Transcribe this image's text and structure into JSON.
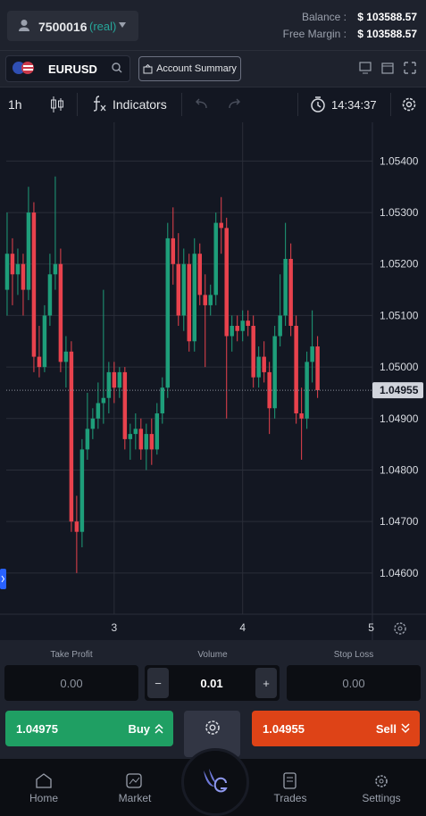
{
  "account": {
    "number": "7500016",
    "mode": "(real)",
    "balance_label": "Balance :",
    "balance": "$ 103588.57",
    "free_margin_label": "Free Margin :",
    "free_margin": "$ 103588.57"
  },
  "toolbar": {
    "symbol": "EURUSD",
    "account_summary": "Account Summary",
    "timeframe": "1h",
    "indicators": "Indicators",
    "time": "14:34:37"
  },
  "chart_data": {
    "type": "candlestick",
    "up_color": "#1e9e7a",
    "down_color": "#e8424d",
    "grid": true,
    "xlim": [
      2.16,
      5.01
    ],
    "xticks": [
      3,
      4,
      5
    ],
    "ylim": [
      1.0452,
      1.0547
    ],
    "yticks": [
      {
        "value": 1.046,
        "label": "1.04600"
      },
      {
        "value": 1.047,
        "label": "1.04700"
      },
      {
        "value": 1.048,
        "label": "1.04800"
      },
      {
        "value": 1.049,
        "label": "1.04900"
      },
      {
        "value": 1.05,
        "label": "1.05000"
      },
      {
        "value": 1.051,
        "label": "1.05100"
      },
      {
        "value": 1.052,
        "label": "1.05200"
      },
      {
        "value": 1.053,
        "label": "1.05300"
      },
      {
        "value": 1.054,
        "label": "1.05400"
      }
    ],
    "last_price": 1.04955,
    "x": [
      2.1667,
      2.2083,
      2.25,
      2.2917,
      2.3333,
      2.375,
      2.4167,
      2.4583,
      2.5,
      2.5417,
      2.5833,
      2.625,
      2.6667,
      2.7083,
      2.75,
      2.7917,
      2.8333,
      2.875,
      2.9167,
      2.9583,
      3,
      3.0417,
      3.0833,
      3.125,
      3.1667,
      3.2083,
      3.25,
      3.2917,
      3.3333,
      3.375,
      3.4167,
      3.4583,
      3.5,
      3.5417,
      3.5833,
      3.625,
      3.6667,
      3.7083,
      3.75,
      3.7917,
      3.8333,
      3.875,
      3.9167,
      3.9583,
      4,
      4.0417,
      4.0833,
      4.125,
      4.1667,
      4.2083,
      4.25,
      4.2917,
      4.3333,
      4.375,
      4.4167,
      4.4583,
      4.5,
      4.5417,
      4.5833
    ],
    "open": [
      1.0515,
      1.0522,
      1.0518,
      1.052,
      1.0515,
      1.053,
      1.0502,
      1.05,
      1.051,
      1.0518,
      1.052,
      1.0501,
      1.0503,
      1.047,
      1.0468,
      1.0484,
      1.0488,
      1.049,
      1.0493,
      1.0494,
      1.0499,
      1.0496,
      1.0499,
      1.0486,
      1.0487,
      1.0488,
      1.0484,
      1.0487,
      1.0484,
      1.0491,
      1.0496,
      1.0525,
      1.052,
      1.051,
      1.052,
      1.0505,
      1.0522,
      1.0514,
      1.0512,
      1.0514,
      1.0528,
      1.0527,
      1.0506,
      1.0508,
      1.0507,
      1.0509,
      1.0508,
      1.0498,
      1.0502,
      1.0499,
      1.0492,
      1.0506,
      1.051,
      1.0521,
      1.0508,
      1.0491,
      1.049,
      1.0501,
      1.0504
    ],
    "high": [
      1.053,
      1.0525,
      1.0523,
      1.0522,
      1.0535,
      1.0532,
      1.0508,
      1.0512,
      1.0522,
      1.0537,
      1.0523,
      1.0506,
      1.0505,
      1.0475,
      1.0486,
      1.0495,
      1.0492,
      1.0497,
      1.0515,
      1.0501,
      1.0501,
      1.05,
      1.05,
      1.0489,
      1.0491,
      1.049,
      1.0489,
      1.049,
      1.0493,
      1.0498,
      1.0528,
      1.0531,
      1.0526,
      1.0523,
      1.0522,
      1.0525,
      1.0524,
      1.0518,
      1.0516,
      1.053,
      1.0533,
      1.0529,
      1.051,
      1.051,
      1.0511,
      1.0511,
      1.051,
      1.0504,
      1.0505,
      1.0501,
      1.0508,
      1.0518,
      1.0528,
      1.0524,
      1.051,
      1.0496,
      1.0503,
      1.0511,
      1.0506
    ],
    "low": [
      1.051,
      1.0512,
      1.0514,
      1.051,
      1.0513,
      1.0499,
      1.0498,
      1.0499,
      1.0508,
      1.0515,
      1.0499,
      1.0496,
      1.0468,
      1.046,
      1.0465,
      1.0482,
      1.0486,
      1.0488,
      1.0489,
      1.0491,
      1.0493,
      1.0494,
      1.0484,
      1.0482,
      1.0484,
      1.0482,
      1.048,
      1.0481,
      1.0483,
      1.0489,
      1.0494,
      1.0516,
      1.0508,
      1.0507,
      1.0503,
      1.0503,
      1.0512,
      1.05,
      1.051,
      1.0512,
      1.0522,
      1.049,
      1.0503,
      1.0505,
      1.0505,
      1.0506,
      1.0496,
      1.0496,
      1.0497,
      1.0487,
      1.049,
      1.0504,
      1.0508,
      1.0506,
      1.0489,
      1.0482,
      1.0488,
      1.0497,
      1.0494
    ],
    "close": [
      1.0522,
      1.0518,
      1.052,
      1.0515,
      1.053,
      1.0502,
      1.05,
      1.051,
      1.0518,
      1.052,
      1.0501,
      1.0503,
      1.047,
      1.0468,
      1.0484,
      1.0488,
      1.049,
      1.0493,
      1.0494,
      1.0499,
      1.0496,
      1.0499,
      1.0486,
      1.0487,
      1.0488,
      1.0484,
      1.0487,
      1.0484,
      1.0491,
      1.0496,
      1.0525,
      1.052,
      1.051,
      1.052,
      1.0505,
      1.0522,
      1.0514,
      1.0512,
      1.0514,
      1.0528,
      1.0527,
      1.0506,
      1.0508,
      1.0507,
      1.0509,
      1.0508,
      1.0498,
      1.0502,
      1.0499,
      1.0492,
      1.0506,
      1.051,
      1.0521,
      1.0508,
      1.0491,
      1.049,
      1.0501,
      1.0504,
      1.04955
    ]
  },
  "order": {
    "take_profit_label": "Take Profit",
    "take_profit": "0.00",
    "volume_label": "Volume",
    "volume": "0.01",
    "decrease": "−",
    "increase": "+",
    "stop_loss_label": "Stop Loss",
    "stop_loss": "0.00",
    "buy_price": "1.04975",
    "buy": "Buy",
    "sell_price": "1.04955",
    "sell": "Sell"
  },
  "nav": {
    "items": [
      "Home",
      "Market",
      "Trades",
      "Settings"
    ]
  }
}
